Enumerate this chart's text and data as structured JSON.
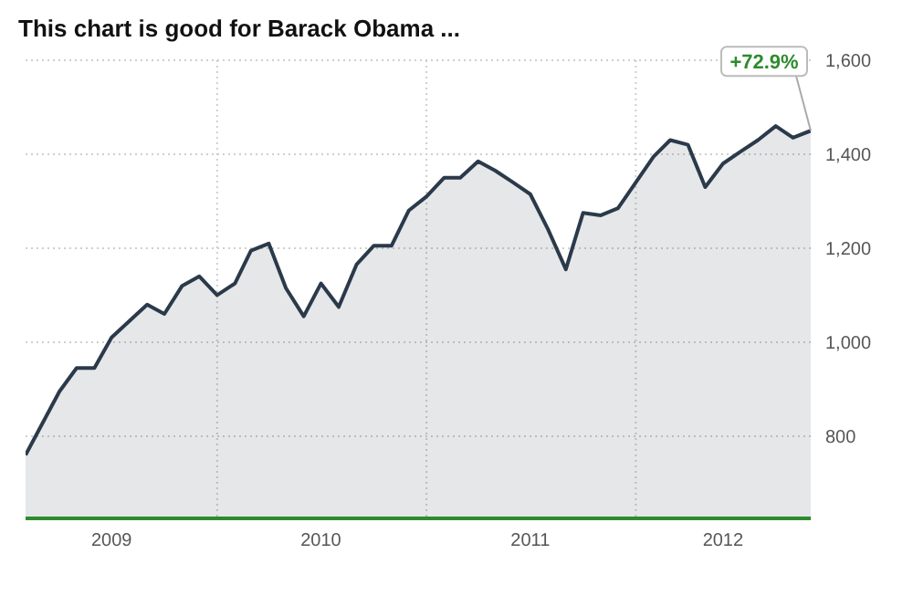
{
  "chart_data": {
    "type": "area",
    "title": "This chart is good for Barack Obama ...",
    "x": [
      "2009-02",
      "2009-04",
      "2009-05",
      "2009-06",
      "2009-07",
      "2009-08",
      "2009-09",
      "2009-10",
      "2009-11",
      "2009-12",
      "2010-01",
      "2010-02",
      "2010-03",
      "2010-04",
      "2010-05",
      "2010-06",
      "2010-07",
      "2010-08",
      "2010-09",
      "2010-10",
      "2010-11",
      "2010-12",
      "2011-01",
      "2011-02",
      "2011-03",
      "2011-04",
      "2011-05",
      "2011-06",
      "2011-07",
      "2011-08",
      "2011-09",
      "2011-10",
      "2011-11",
      "2011-12",
      "2012-01",
      "2012-02",
      "2012-03",
      "2012-04",
      "2012-05",
      "2012-06",
      "2012-07",
      "2012-08",
      "2012-09",
      "2012-10",
      "2012-11"
    ],
    "series": [
      {
        "color": "#2b3a4a",
        "values": [
          760,
          895,
          945,
          945,
          1010,
          1045,
          1080,
          1060,
          1120,
          1140,
          1100,
          1125,
          1195,
          1210,
          1115,
          1055,
          1125,
          1075,
          1165,
          1205,
          1205,
          1280,
          1310,
          1350,
          1350,
          1385,
          1365,
          1340,
          1315,
          1240,
          1155,
          1275,
          1270,
          1285,
          1340,
          1395,
          1430,
          1420,
          1330,
          1380,
          1405,
          1430,
          1460,
          1435,
          1450
        ]
      }
    ],
    "xlim": [
      "2009-02",
      "2012-11"
    ],
    "xticks": [
      {
        "value": "2009-07",
        "label": "2009"
      },
      {
        "value": "2010-01",
        "label": null
      },
      {
        "value": "2010-07",
        "label": "2010"
      },
      {
        "value": "2011-01",
        "label": null
      },
      {
        "value": "2011-07",
        "label": "2011"
      },
      {
        "value": "2012-01",
        "label": null
      },
      {
        "value": "2012-06",
        "label": "2012"
      }
    ],
    "ylim": [
      625,
      1600
    ],
    "yticks": [
      {
        "value": 800,
        "label": "800"
      },
      {
        "value": 1000,
        "label": "1,000"
      },
      {
        "value": 1200,
        "label": "1,200"
      },
      {
        "value": 1400,
        "label": "1,400"
      },
      {
        "value": 1600,
        "label": "1,600"
      }
    ],
    "grid": true,
    "annotations": [
      {
        "text": "+72.9%",
        "x": "2012-11",
        "y": 1450
      }
    ]
  }
}
